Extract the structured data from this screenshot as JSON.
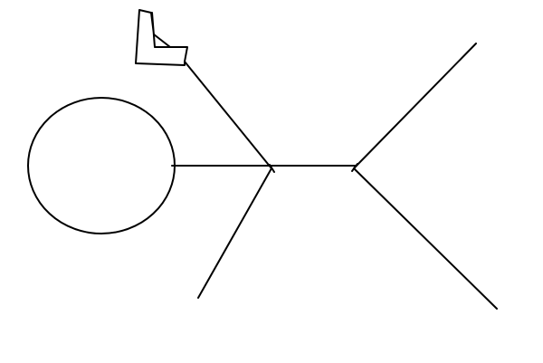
{
  "drawing": {
    "stroke_color": "#000000",
    "background_color": "#ffffff"
  }
}
